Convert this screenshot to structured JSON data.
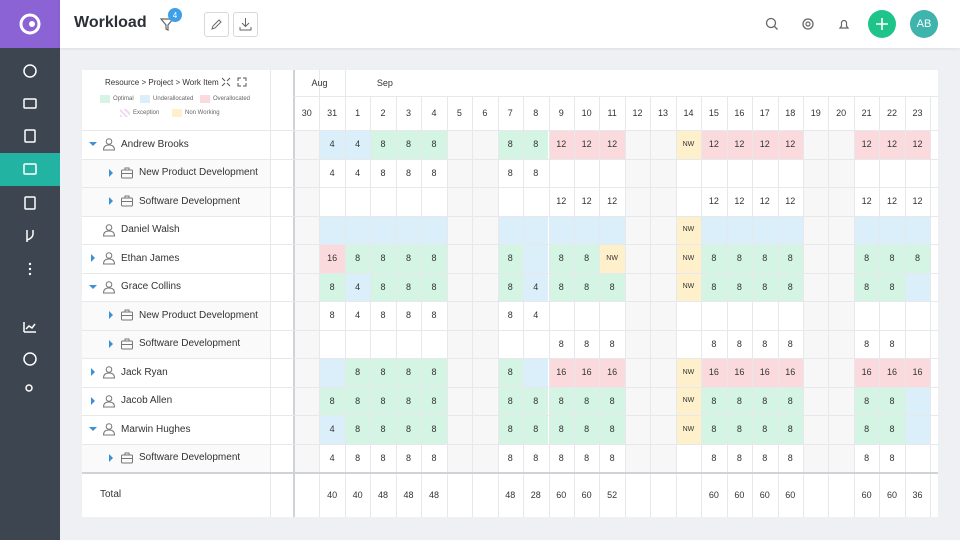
{
  "header": {
    "title": "Workload",
    "filter_count": 4,
    "avatar": "AB"
  },
  "panel": {
    "breadcrumb": "Resource > Project > Work Item",
    "legend": [
      {
        "label": "Optimal",
        "color": "#d4f4e4"
      },
      {
        "label": "Underallocated",
        "color": "#dbeffa"
      },
      {
        "label": "Overallocated",
        "color": "#fadadd"
      },
      {
        "label": "Exception",
        "color": "#f1d7f0"
      },
      {
        "label": "Non Working",
        "color": "#fdf0cb"
      }
    ]
  },
  "grid": {
    "months": [
      {
        "label": "Aug",
        "span": 2
      },
      {
        "label": "Sep",
        "span": 23
      }
    ],
    "days": [
      30,
      31,
      1,
      2,
      3,
      4,
      5,
      6,
      7,
      8,
      9,
      10,
      11,
      12,
      13,
      14,
      15,
      16,
      17,
      18,
      19,
      20,
      21,
      22,
      23
    ],
    "weekend": [
      true,
      false,
      false,
      false,
      false,
      false,
      true,
      true,
      false,
      false,
      false,
      false,
      false,
      true,
      true,
      false,
      false,
      false,
      false,
      false,
      true,
      true,
      false,
      false,
      false
    ],
    "rows": [
      {
        "label": "Andrew Brooks",
        "kind": "resource",
        "expanded": true,
        "cells": [
          null,
          4,
          4,
          8,
          8,
          8,
          null,
          null,
          8,
          8,
          12,
          12,
          12,
          null,
          null,
          "NW",
          12,
          12,
          12,
          12,
          null,
          null,
          12,
          12,
          12
        ],
        "status": [
          null,
          1,
          1,
          0,
          0,
          0,
          null,
          null,
          0,
          0,
          2,
          2,
          2,
          null,
          null,
          4,
          2,
          2,
          2,
          2,
          null,
          null,
          2,
          2,
          2
        ]
      },
      {
        "label": "New Product Development",
        "kind": "project",
        "expanded": false,
        "cells": [
          null,
          4,
          4,
          8,
          8,
          8,
          null,
          null,
          8,
          8,
          null,
          null,
          null,
          null,
          null,
          null,
          null,
          null,
          null,
          null,
          null,
          null,
          null,
          null,
          null
        ]
      },
      {
        "label": "Software Development",
        "kind": "project",
        "expanded": false,
        "cells": [
          null,
          null,
          null,
          null,
          null,
          null,
          null,
          null,
          null,
          null,
          12,
          12,
          12,
          null,
          null,
          null,
          12,
          12,
          12,
          12,
          null,
          null,
          12,
          12,
          12
        ]
      },
      {
        "label": "Daniel Walsh",
        "kind": "resource",
        "expanded": null,
        "cells": [
          null,
          null,
          null,
          null,
          null,
          null,
          null,
          null,
          null,
          null,
          null,
          null,
          null,
          null,
          null,
          "NW",
          null,
          null,
          null,
          null,
          null,
          null,
          null,
          null,
          null
        ],
        "status": [
          null,
          1,
          1,
          1,
          1,
          1,
          null,
          null,
          1,
          1,
          1,
          1,
          1,
          null,
          null,
          4,
          1,
          1,
          1,
          1,
          null,
          null,
          1,
          1,
          1
        ]
      },
      {
        "label": "Ethan James",
        "kind": "resource",
        "expanded": false,
        "cells": [
          null,
          16,
          8,
          8,
          8,
          8,
          null,
          null,
          8,
          null,
          8,
          8,
          "NW",
          null,
          null,
          "NW",
          8,
          8,
          8,
          8,
          null,
          null,
          8,
          8,
          8
        ],
        "status": [
          null,
          2,
          0,
          0,
          0,
          0,
          null,
          null,
          0,
          1,
          0,
          0,
          4,
          null,
          null,
          4,
          0,
          0,
          0,
          0,
          null,
          null,
          0,
          0,
          0
        ]
      },
      {
        "label": "Grace Collins",
        "kind": "resource",
        "expanded": true,
        "cells": [
          null,
          8,
          4,
          8,
          8,
          8,
          null,
          null,
          8,
          4,
          8,
          8,
          8,
          null,
          null,
          "NW",
          8,
          8,
          8,
          8,
          null,
          null,
          8,
          8,
          null
        ],
        "status": [
          null,
          0,
          1,
          0,
          0,
          0,
          null,
          null,
          0,
          1,
          0,
          0,
          0,
          null,
          null,
          4,
          0,
          0,
          0,
          0,
          null,
          null,
          0,
          0,
          1
        ]
      },
      {
        "label": "New Product Development",
        "kind": "project",
        "expanded": false,
        "cells": [
          null,
          8,
          4,
          8,
          8,
          8,
          null,
          null,
          8,
          4,
          null,
          null,
          null,
          null,
          null,
          null,
          null,
          null,
          null,
          null,
          null,
          null,
          null,
          null,
          null
        ]
      },
      {
        "label": "Software Development",
        "kind": "project",
        "expanded": false,
        "cells": [
          null,
          null,
          null,
          null,
          null,
          null,
          null,
          null,
          null,
          null,
          8,
          8,
          8,
          null,
          null,
          null,
          8,
          8,
          8,
          8,
          null,
          null,
          8,
          8,
          null
        ]
      },
      {
        "label": "Jack Ryan",
        "kind": "resource",
        "expanded": false,
        "cells": [
          null,
          null,
          8,
          8,
          8,
          8,
          null,
          null,
          8,
          null,
          16,
          16,
          16,
          null,
          null,
          "NW",
          16,
          16,
          16,
          16,
          null,
          null,
          16,
          16,
          16
        ],
        "status": [
          null,
          1,
          0,
          0,
          0,
          0,
          null,
          null,
          0,
          1,
          2,
          2,
          2,
          null,
          null,
          4,
          2,
          2,
          2,
          2,
          null,
          null,
          2,
          2,
          2
        ]
      },
      {
        "label": "Jacob Allen",
        "kind": "resource",
        "expanded": false,
        "cells": [
          null,
          8,
          8,
          8,
          8,
          8,
          null,
          null,
          8,
          8,
          8,
          8,
          8,
          null,
          null,
          "NW",
          8,
          8,
          8,
          8,
          null,
          null,
          8,
          8,
          null
        ],
        "status": [
          null,
          0,
          0,
          0,
          0,
          0,
          null,
          null,
          0,
          0,
          0,
          0,
          0,
          null,
          null,
          4,
          0,
          0,
          0,
          0,
          null,
          null,
          0,
          0,
          1
        ]
      },
      {
        "label": "Marwin Hughes",
        "kind": "resource",
        "expanded": true,
        "cells": [
          null,
          4,
          8,
          8,
          8,
          8,
          null,
          null,
          8,
          8,
          8,
          8,
          8,
          null,
          null,
          "NW",
          8,
          8,
          8,
          8,
          null,
          null,
          8,
          8,
          null
        ],
        "status": [
          null,
          1,
          0,
          0,
          0,
          0,
          null,
          null,
          0,
          0,
          0,
          0,
          0,
          null,
          null,
          4,
          0,
          0,
          0,
          0,
          null,
          null,
          0,
          0,
          1
        ]
      },
      {
        "label": "Software Development",
        "kind": "project",
        "expanded": false,
        "cells": [
          null,
          4,
          8,
          8,
          8,
          8,
          null,
          null,
          8,
          8,
          8,
          8,
          8,
          null,
          null,
          null,
          8,
          8,
          8,
          8,
          null,
          null,
          8,
          8,
          null
        ]
      }
    ],
    "total": {
      "label": "Total",
      "cells": [
        null,
        40,
        40,
        48,
        48,
        48,
        null,
        null,
        48,
        28,
        60,
        60,
        52,
        null,
        null,
        null,
        60,
        60,
        60,
        60,
        null,
        null,
        60,
        60,
        36
      ]
    }
  }
}
